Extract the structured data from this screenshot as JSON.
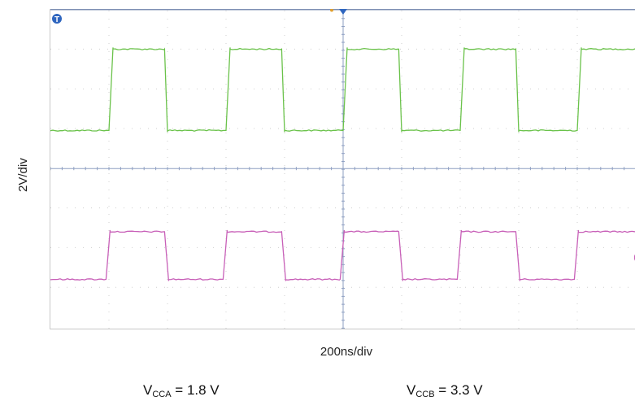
{
  "chart_data": {
    "type": "line",
    "title": "",
    "xlabel": "200ns/div",
    "ylabel": "2V/div",
    "x_divisions": 10,
    "y_divisions": 8,
    "xlim": [
      0,
      10
    ],
    "ylim": [
      0,
      8
    ],
    "trigger_marker": "T",
    "grid": true,
    "series": [
      {
        "color": "#6ac24a",
        "low_div": 4.95,
        "high_div": 7.0,
        "edges_rise": [
          1.0,
          3.0,
          5.0,
          7.0,
          9.0
        ],
        "edges_fall": [
          1.95,
          3.95,
          5.95,
          7.95
        ],
        "rise_time_div": 0.07,
        "fall_time_div": 0.05
      },
      {
        "color": "#c860b8",
        "low_div": 1.2,
        "high_div": 2.4,
        "edges_rise": [
          0.95,
          2.95,
          4.95,
          6.95,
          8.95
        ],
        "edges_fall": [
          1.95,
          3.95,
          5.95,
          7.95
        ],
        "rise_time_div": 0.07,
        "fall_time_div": 0.07
      }
    ]
  },
  "footer": {
    "vcca": {
      "prefix": "V",
      "sub": "CCA",
      "suffix": " = 1.8 V"
    },
    "vccb": {
      "prefix": "V",
      "sub": "CCB",
      "suffix": " = 3.3 V"
    }
  }
}
